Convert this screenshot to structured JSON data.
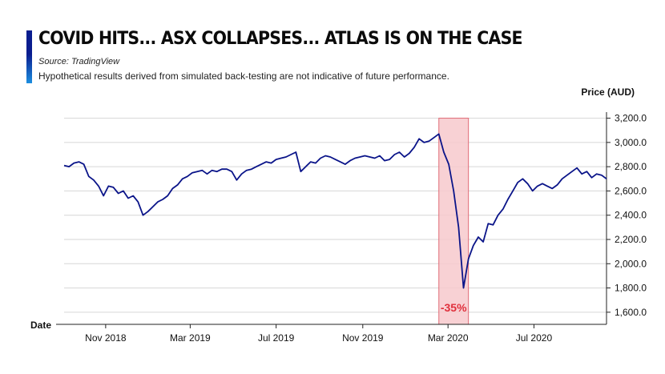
{
  "header": {
    "title": "COVID HITS... ASX COLLAPSES... ATLAS IS ON THE CASE",
    "source": "Source: TradingView",
    "disclaimer": "Hypothetical results derived from simulated back-testing are not indicative of future performance."
  },
  "colors": {
    "line": "#0a1489",
    "accent_top": "#0a1d8f",
    "accent_bottom": "#1c8fe0",
    "highlight_fill": "#f7c9cd",
    "highlight_stroke": "#e06b76",
    "annotation": "#e0303c",
    "grid": "#d6d6d6"
  },
  "chart_data": {
    "type": "line",
    "xlabel": "Date",
    "ylabel": "Price (AUD)",
    "ylim": [
      1500,
      3250
    ],
    "y_ticks": [
      {
        "value": 1600,
        "label": "1,600.0"
      },
      {
        "value": 1800,
        "label": "1,800.0"
      },
      {
        "value": 2000,
        "label": "2,000.0"
      },
      {
        "value": 2200,
        "label": "2,200.0"
      },
      {
        "value": 2400,
        "label": "2,400.0"
      },
      {
        "value": 2600,
        "label": "2,600.0"
      },
      {
        "value": 2800,
        "label": "2,800.0"
      },
      {
        "value": 3000,
        "label": "3,000.0"
      },
      {
        "value": 3200,
        "label": "3,200.0"
      }
    ],
    "x_range": [
      "2018-09-03",
      "2020-10-12"
    ],
    "x_ticks": [
      {
        "date": "2018-11-01",
        "label": "Nov 2018"
      },
      {
        "date": "2019-03-01",
        "label": "Mar 2019"
      },
      {
        "date": "2019-07-01",
        "label": "Jul 2019"
      },
      {
        "date": "2019-11-01",
        "label": "Nov 2019"
      },
      {
        "date": "2020-03-01",
        "label": "Mar 2020"
      },
      {
        "date": "2020-07-01",
        "label": "Jul 2020"
      }
    ],
    "grid": "horizontal",
    "highlight": {
      "start": "2020-02-17",
      "end": "2020-03-30",
      "label": "-35%"
    },
    "series": [
      {
        "points": [
          [
            "2018-09-03",
            2810
          ],
          [
            "2018-09-10",
            2800
          ],
          [
            "2018-09-17",
            2830
          ],
          [
            "2018-09-24",
            2840
          ],
          [
            "2018-10-01",
            2820
          ],
          [
            "2018-10-08",
            2720
          ],
          [
            "2018-10-15",
            2690
          ],
          [
            "2018-10-22",
            2640
          ],
          [
            "2018-10-29",
            2560
          ],
          [
            "2018-11-05",
            2640
          ],
          [
            "2018-11-12",
            2630
          ],
          [
            "2018-11-19",
            2580
          ],
          [
            "2018-11-26",
            2600
          ],
          [
            "2018-12-03",
            2540
          ],
          [
            "2018-12-10",
            2560
          ],
          [
            "2018-12-17",
            2510
          ],
          [
            "2018-12-24",
            2400
          ],
          [
            "2018-12-31",
            2430
          ],
          [
            "2019-01-07",
            2470
          ],
          [
            "2019-01-14",
            2510
          ],
          [
            "2019-01-21",
            2530
          ],
          [
            "2019-01-28",
            2560
          ],
          [
            "2019-02-04",
            2620
          ],
          [
            "2019-02-11",
            2650
          ],
          [
            "2019-02-18",
            2700
          ],
          [
            "2019-02-25",
            2720
          ],
          [
            "2019-03-04",
            2750
          ],
          [
            "2019-03-11",
            2760
          ],
          [
            "2019-03-18",
            2770
          ],
          [
            "2019-03-25",
            2740
          ],
          [
            "2019-04-01",
            2770
          ],
          [
            "2019-04-08",
            2760
          ],
          [
            "2019-04-15",
            2780
          ],
          [
            "2019-04-22",
            2780
          ],
          [
            "2019-04-29",
            2760
          ],
          [
            "2019-05-06",
            2690
          ],
          [
            "2019-05-13",
            2740
          ],
          [
            "2019-05-20",
            2770
          ],
          [
            "2019-05-27",
            2780
          ],
          [
            "2019-06-03",
            2800
          ],
          [
            "2019-06-10",
            2820
          ],
          [
            "2019-06-17",
            2840
          ],
          [
            "2019-06-24",
            2830
          ],
          [
            "2019-07-01",
            2860
          ],
          [
            "2019-07-08",
            2870
          ],
          [
            "2019-07-15",
            2880
          ],
          [
            "2019-07-22",
            2900
          ],
          [
            "2019-07-29",
            2920
          ],
          [
            "2019-08-05",
            2760
          ],
          [
            "2019-08-12",
            2800
          ],
          [
            "2019-08-19",
            2840
          ],
          [
            "2019-08-26",
            2830
          ],
          [
            "2019-09-02",
            2870
          ],
          [
            "2019-09-09",
            2890
          ],
          [
            "2019-09-16",
            2880
          ],
          [
            "2019-09-23",
            2860
          ],
          [
            "2019-09-30",
            2840
          ],
          [
            "2019-10-07",
            2820
          ],
          [
            "2019-10-14",
            2850
          ],
          [
            "2019-10-21",
            2870
          ],
          [
            "2019-10-28",
            2880
          ],
          [
            "2019-11-04",
            2890
          ],
          [
            "2019-11-11",
            2880
          ],
          [
            "2019-11-18",
            2870
          ],
          [
            "2019-11-25",
            2890
          ],
          [
            "2019-12-02",
            2850
          ],
          [
            "2019-12-09",
            2860
          ],
          [
            "2019-12-16",
            2900
          ],
          [
            "2019-12-23",
            2920
          ],
          [
            "2019-12-30",
            2880
          ],
          [
            "2020-01-06",
            2910
          ],
          [
            "2020-01-13",
            2960
          ],
          [
            "2020-01-20",
            3030
          ],
          [
            "2020-01-27",
            3000
          ],
          [
            "2020-02-03",
            3010
          ],
          [
            "2020-02-10",
            3040
          ],
          [
            "2020-02-17",
            3070
          ],
          [
            "2020-02-24",
            2920
          ],
          [
            "2020-03-02",
            2820
          ],
          [
            "2020-03-09",
            2600
          ],
          [
            "2020-03-16",
            2300
          ],
          [
            "2020-03-23",
            1800
          ],
          [
            "2020-03-30",
            2040
          ],
          [
            "2020-04-06",
            2150
          ],
          [
            "2020-04-13",
            2220
          ],
          [
            "2020-04-20",
            2180
          ],
          [
            "2020-04-27",
            2330
          ],
          [
            "2020-05-04",
            2320
          ],
          [
            "2020-05-11",
            2400
          ],
          [
            "2020-05-18",
            2450
          ],
          [
            "2020-05-25",
            2530
          ],
          [
            "2020-06-01",
            2600
          ],
          [
            "2020-06-08",
            2670
          ],
          [
            "2020-06-15",
            2700
          ],
          [
            "2020-06-22",
            2660
          ],
          [
            "2020-06-29",
            2600
          ],
          [
            "2020-07-06",
            2640
          ],
          [
            "2020-07-13",
            2660
          ],
          [
            "2020-07-20",
            2640
          ],
          [
            "2020-07-27",
            2620
          ],
          [
            "2020-08-03",
            2650
          ],
          [
            "2020-08-10",
            2700
          ],
          [
            "2020-08-17",
            2730
          ],
          [
            "2020-08-24",
            2760
          ],
          [
            "2020-08-31",
            2790
          ],
          [
            "2020-09-07",
            2740
          ],
          [
            "2020-09-14",
            2760
          ],
          [
            "2020-09-21",
            2710
          ],
          [
            "2020-09-28",
            2740
          ],
          [
            "2020-10-05",
            2730
          ],
          [
            "2020-10-12",
            2700
          ]
        ]
      }
    ]
  }
}
